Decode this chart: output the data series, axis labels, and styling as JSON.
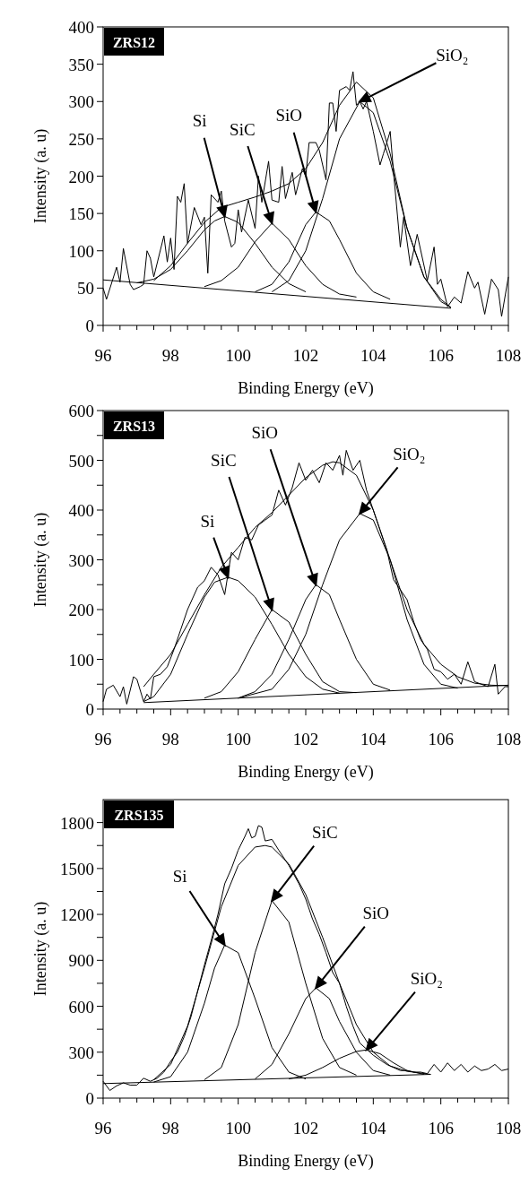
{
  "chart_data": [
    {
      "type": "line",
      "title": "ZRS12",
      "xlabel": "Binding Energy (eV)",
      "ylabel": "Intensity (a. u)",
      "xlim": [
        96,
        108
      ],
      "ylim": [
        0,
        400
      ],
      "xticks": [
        96,
        {
          "value": 96.5,
          "label": null
        },
        {
          "value": 97,
          "label": null
        },
        {
          "value": 97.5,
          "label": null
        },
        98,
        {
          "value": 98.5,
          "label": null
        },
        {
          "value": 99,
          "label": null
        },
        {
          "value": 99.5,
          "label": null
        },
        100,
        {
          "value": 100.5,
          "label": null
        },
        {
          "value": 101,
          "label": null
        },
        {
          "value": 101.5,
          "label": null
        },
        102,
        {
          "value": 102.5,
          "label": null
        },
        {
          "value": 103,
          "label": null
        },
        {
          "value": 103.5,
          "label": null
        },
        104,
        {
          "value": 104.5,
          "label": null
        },
        {
          "value": 105,
          "label": null
        },
        {
          "value": 105.5,
          "label": null
        },
        106,
        {
          "value": 106.5,
          "label": null
        },
        {
          "value": 107,
          "label": null
        },
        {
          "value": 107.5,
          "label": null
        },
        108
      ],
      "yticks": [
        0,
        50,
        100,
        150,
        200,
        250,
        300,
        350,
        400
      ],
      "series": [
        {
          "color": "#000000",
          "x": [
            96.0,
            96.1,
            96.4,
            96.5,
            96.6,
            96.8,
            96.9,
            97.1,
            97.2,
            97.3,
            97.4,
            97.5,
            97.8,
            97.9,
            98.0,
            98.1,
            98.2,
            98.3,
            98.4,
            98.5,
            98.7,
            98.9,
            99.0,
            99.1,
            99.2,
            99.4,
            99.5,
            99.6,
            99.8,
            99.9,
            100.0,
            100.1,
            100.3,
            100.5,
            100.6,
            100.7,
            100.9,
            101.0,
            101.2,
            101.3,
            101.4,
            101.6,
            101.7,
            101.9,
            102.0,
            102.1,
            102.3,
            102.4,
            102.6,
            102.7,
            102.8,
            102.9,
            103.0,
            103.2,
            103.3,
            103.4,
            103.5,
            103.6,
            103.7,
            103.8,
            104.0,
            104.2,
            104.3,
            104.5,
            104.6,
            104.8,
            104.9,
            105.1,
            105.3,
            105.6,
            105.8,
            105.9,
            106.0,
            106.2,
            106.4,
            106.6,
            106.8,
            107.0,
            107.1,
            107.3,
            107.5,
            107.7,
            107.8,
            108.0
          ],
          "values": [
            50,
            35,
            78,
            58,
            103,
            55,
            48,
            52,
            55,
            100,
            90,
            65,
            120,
            85,
            117,
            75,
            173,
            165,
            190,
            110,
            158,
            135,
            145,
            70,
            175,
            165,
            180,
            140,
            105,
            110,
            155,
            125,
            168,
            130,
            200,
            165,
            220,
            168,
            165,
            213,
            170,
            205,
            175,
            210,
            200,
            245,
            245,
            235,
            195,
            298,
            298,
            260,
            315,
            320,
            315,
            340,
            295,
            300,
            290,
            300,
            260,
            215,
            230,
            260,
            205,
            105,
            145,
            80,
            122,
            60,
            105,
            55,
            62,
            25,
            38,
            30,
            72,
            50,
            58,
            15,
            62,
            48,
            12,
            65
          ]
        },
        {
          "color": "#000000",
          "x": [
            97.5,
            98.0,
            98.5,
            99.0,
            99.5,
            100.0,
            100.5,
            101.0,
            101.5,
            102.0,
            102.5,
            103.0,
            103.5,
            104.0,
            104.5,
            105.0,
            105.5,
            106.0,
            106.3
          ],
          "values": [
            60,
            80,
            110,
            138,
            158,
            165,
            172,
            180,
            190,
            210,
            245,
            295,
            326,
            305,
            230,
            130,
            65,
            35,
            24
          ]
        },
        {
          "color": "#000000",
          "x": [
            96,
            106.3
          ],
          "values": [
            61,
            23
          ]
        },
        {
          "color": "#000000",
          "x": [
            97.0,
            97.5,
            98.0,
            98.5,
            99.0,
            99.3,
            99.6,
            100.0,
            100.5,
            101.0,
            101.5,
            102.0
          ],
          "values": [
            57,
            62,
            75,
            100,
            128,
            140,
            146,
            138,
            110,
            78,
            56,
            45
          ]
        },
        {
          "color": "#000000",
          "x": [
            99.0,
            99.5,
            100.0,
            100.5,
            101.0,
            101.5,
            102.0,
            102.5,
            103.0,
            103.5
          ],
          "values": [
            52,
            60,
            78,
            112,
            137,
            115,
            80,
            55,
            42,
            38
          ]
        },
        {
          "color": "#000000",
          "x": [
            100.5,
            101.0,
            101.5,
            102.0,
            102.3,
            102.7,
            103.0,
            103.5,
            104.0,
            104.5
          ],
          "values": [
            45,
            55,
            85,
            135,
            152,
            140,
            115,
            70,
            45,
            35
          ]
        },
        {
          "color": "#000000",
          "x": [
            101.0,
            101.5,
            102.0,
            102.5,
            103.0,
            103.6,
            104.0,
            104.5,
            105.0,
            105.5,
            106.0,
            106.3
          ],
          "values": [
            45,
            60,
            100,
            170,
            250,
            300,
            285,
            220,
            130,
            65,
            32,
            24
          ]
        }
      ],
      "annotations": [
        "Si",
        "SiC",
        "SiO",
        "SiO₂"
      ]
    },
    {
      "type": "line",
      "title": "ZRS13",
      "xlabel": "Binding Energy (eV)",
      "ylabel": "Intensity (a. u)",
      "xlim": [
        96,
        108
      ],
      "ylim": [
        0,
        600
      ],
      "xticks": [
        96,
        {
          "value": 96.5,
          "label": null
        },
        {
          "value": 97,
          "label": null
        },
        {
          "value": 97.5,
          "label": null
        },
        98,
        {
          "value": 98.5,
          "label": null
        },
        {
          "value": 99,
          "label": null
        },
        {
          "value": 99.5,
          "label": null
        },
        100,
        {
          "value": 100.5,
          "label": null
        },
        {
          "value": 101,
          "label": null
        },
        {
          "value": 101.5,
          "label": null
        },
        102,
        {
          "value": 102.5,
          "label": null
        },
        {
          "value": 103,
          "label": null
        },
        {
          "value": 103.5,
          "label": null
        },
        104,
        {
          "value": 104.5,
          "label": null
        },
        {
          "value": 105,
          "label": null
        },
        {
          "value": 105.5,
          "label": null
        },
        106,
        {
          "value": 106.5,
          "label": null
        },
        {
          "value": 107,
          "label": null
        },
        {
          "value": 107.5,
          "label": null
        },
        108
      ],
      "yticks": [
        0,
        {
          "value": 50,
          "label": null
        },
        100,
        {
          "value": 150,
          "label": null
        },
        200,
        {
          "value": 250,
          "label": null
        },
        300,
        {
          "value": 350,
          "label": null
        },
        400,
        {
          "value": 450,
          "label": null
        },
        500,
        {
          "value": 550,
          "label": null
        },
        600
      ],
      "series": [
        {
          "color": "#000000",
          "x": [
            96.0,
            96.1,
            96.3,
            96.5,
            96.6,
            96.7,
            96.9,
            97.0,
            97.2,
            97.3,
            97.4,
            97.5,
            97.7,
            97.9,
            98.1,
            98.3,
            98.5,
            98.8,
            99.0,
            99.2,
            99.4,
            99.6,
            99.8,
            100.0,
            100.2,
            100.4,
            100.6,
            100.8,
            101.0,
            101.2,
            101.4,
            101.6,
            101.8,
            102.0,
            102.2,
            102.4,
            102.6,
            102.8,
            103.0,
            103.1,
            103.2,
            103.4,
            103.6,
            103.8,
            104.0,
            104.2,
            104.4,
            104.6,
            104.8,
            105.0,
            105.2,
            105.4,
            105.6,
            105.8,
            106.0,
            106.2,
            106.4,
            106.6,
            106.8,
            107.0,
            107.2,
            107.4,
            107.6,
            107.7,
            107.9,
            108.0
          ],
          "values": [
            15,
            40,
            48,
            25,
            45,
            10,
            65,
            60,
            15,
            30,
            20,
            65,
            70,
            85,
            120,
            160,
            200,
            245,
            258,
            285,
            270,
            230,
            315,
            300,
            345,
            340,
            370,
            380,
            390,
            440,
            410,
            445,
            495,
            460,
            480,
            455,
            495,
            480,
            510,
            470,
            520,
            480,
            500,
            440,
            400,
            360,
            320,
            260,
            240,
            220,
            175,
            140,
            120,
            80,
            75,
            60,
            70,
            50,
            95,
            55,
            50,
            45,
            90,
            30,
            45,
            45
          ]
        },
        {
          "color": "#000000",
          "x": [
            97.2,
            97.5,
            98.0,
            98.5,
            99.0,
            99.5,
            100.0,
            100.5,
            101.0,
            101.5,
            102.0,
            102.5,
            102.8,
            103.0,
            103.5,
            104.0,
            104.5,
            105.0,
            105.5,
            106.0,
            106.5,
            107.0,
            107.5,
            108.0
          ],
          "values": [
            45,
            70,
            110,
            170,
            230,
            285,
            325,
            365,
            395,
            430,
            465,
            490,
            497,
            495,
            470,
            400,
            300,
            200,
            130,
            90,
            65,
            52,
            48,
            47
          ]
        },
        {
          "color": "#000000",
          "x": [
            97.2,
            108
          ],
          "values": [
            13,
            48
          ]
        },
        {
          "color": "#000000",
          "x": [
            97.2,
            97.5,
            98.0,
            98.5,
            99.0,
            99.3,
            99.7,
            100.0,
            100.5,
            101.0,
            101.5,
            102.0,
            102.5,
            103.0
          ],
          "values": [
            15,
            25,
            70,
            150,
            225,
            255,
            265,
            258,
            225,
            170,
            110,
            65,
            40,
            32
          ]
        },
        {
          "color": "#000000",
          "x": [
            99.0,
            99.5,
            100.0,
            100.5,
            101.0,
            101.5,
            102.0,
            102.5,
            103.0,
            103.5
          ],
          "values": [
            22,
            35,
            75,
            140,
            200,
            175,
            110,
            55,
            35,
            33
          ]
        },
        {
          "color": "#000000",
          "x": [
            100.0,
            100.5,
            101.0,
            101.5,
            102.0,
            102.3,
            102.7,
            103.0,
            103.5,
            104.0,
            104.5
          ],
          "values": [
            22,
            35,
            70,
            140,
            220,
            250,
            230,
            180,
            100,
            50,
            38
          ]
        },
        {
          "color": "#000000",
          "x": [
            100.0,
            101.0,
            101.5,
            102.0,
            102.5,
            103.0,
            103.6,
            104.0,
            104.5,
            105.0,
            105.5,
            106.0,
            106.5
          ],
          "values": [
            22,
            40,
            80,
            150,
            250,
            340,
            393,
            380,
            300,
            180,
            90,
            50,
            42
          ]
        }
      ],
      "annotations": [
        "Si",
        "SiC",
        "SiO",
        "SiO₂"
      ]
    },
    {
      "type": "line",
      "title": "ZRS135",
      "xlabel": "Binding Energy (eV)",
      "ylabel": "Intensity (a. u)",
      "xlim": [
        96,
        108
      ],
      "ylim": [
        0,
        1950
      ],
      "xticks": [
        96,
        {
          "value": 96.5,
          "label": null
        },
        {
          "value": 97,
          "label": null
        },
        {
          "value": 97.5,
          "label": null
        },
        98,
        {
          "value": 98.5,
          "label": null
        },
        {
          "value": 99,
          "label": null
        },
        {
          "value": 99.5,
          "label": null
        },
        100,
        {
          "value": 100.5,
          "label": null
        },
        {
          "value": 101,
          "label": null
        },
        {
          "value": 101.5,
          "label": null
        },
        102,
        {
          "value": 102.5,
          "label": null
        },
        {
          "value": 103,
          "label": null
        },
        {
          "value": 103.5,
          "label": null
        },
        104,
        {
          "value": 104.5,
          "label": null
        },
        {
          "value": 105,
          "label": null
        },
        {
          "value": 105.5,
          "label": null
        },
        106,
        {
          "value": 106.5,
          "label": null
        },
        {
          "value": 107,
          "label": null
        },
        {
          "value": 107.5,
          "label": null
        },
        108
      ],
      "yticks": [
        0,
        {
          "value": 150,
          "label": null
        },
        300,
        {
          "value": 450,
          "label": null
        },
        600,
        {
          "value": 750,
          "label": null
        },
        900,
        {
          "value": 1050,
          "label": null
        },
        1200,
        {
          "value": 1350,
          "label": null
        },
        1500,
        {
          "value": 1650,
          "label": null
        },
        1800
      ],
      "series": [
        {
          "color": "#000000",
          "x": [
            96.0,
            96.2,
            96.4,
            96.6,
            96.8,
            97.0,
            97.2,
            97.4,
            97.6,
            97.8,
            98.0,
            98.2,
            98.4,
            98.6,
            98.8,
            99.0,
            99.2,
            99.4,
            99.6,
            99.8,
            100.0,
            100.2,
            100.3,
            100.4,
            100.5,
            100.6,
            100.7,
            100.8,
            101.0,
            101.2,
            101.5,
            101.8,
            102.0,
            102.2,
            102.4,
            102.6,
            102.8,
            103.0,
            103.2,
            103.4,
            103.6,
            103.8,
            104.0,
            104.2,
            104.4,
            104.6,
            104.8,
            105.0,
            105.2,
            105.4,
            105.6,
            105.8,
            106.0,
            106.2,
            106.4,
            106.6,
            106.8,
            107.0,
            107.2,
            107.4,
            107.6,
            107.8,
            108.0
          ],
          "values": [
            110,
            50,
            80,
            100,
            85,
            85,
            130,
            110,
            130,
            170,
            240,
            300,
            400,
            530,
            700,
            870,
            1030,
            1200,
            1400,
            1500,
            1620,
            1710,
            1760,
            1700,
            1710,
            1780,
            1770,
            1680,
            1690,
            1620,
            1520,
            1400,
            1300,
            1170,
            1070,
            950,
            820,
            750,
            600,
            470,
            360,
            320,
            280,
            250,
            220,
            200,
            180,
            180,
            170,
            170,
            160,
            220,
            170,
            230,
            180,
            220,
            170,
            210,
            180,
            190,
            220,
            180,
            190
          ]
        },
        {
          "color": "#000000",
          "x": [
            97.5,
            98.0,
            98.5,
            99.0,
            99.5,
            100.0,
            100.5,
            100.8,
            101.0,
            101.5,
            102.0,
            102.5,
            103.0,
            103.5,
            104.0,
            104.5,
            105.0,
            105.7
          ],
          "values": [
            120,
            220,
            470,
            850,
            1250,
            1520,
            1640,
            1650,
            1640,
            1530,
            1330,
            1050,
            750,
            480,
            300,
            210,
            175,
            155
          ]
        },
        {
          "color": "#000000",
          "x": [
            96,
            105.7
          ],
          "values": [
            95,
            155
          ]
        },
        {
          "color": "#000000",
          "x": [
            97.5,
            98.0,
            98.5,
            99.0,
            99.3,
            99.6,
            100.0,
            100.5,
            101.0,
            101.5,
            102.0
          ],
          "values": [
            105,
            140,
            300,
            620,
            850,
            1000,
            950,
            650,
            330,
            170,
            125
          ]
        },
        {
          "color": "#000000",
          "x": [
            99.0,
            99.5,
            100.0,
            100.5,
            101.0,
            101.5,
            102.0,
            102.5,
            103.0,
            103.5
          ],
          "values": [
            120,
            200,
            480,
            950,
            1290,
            1150,
            750,
            390,
            200,
            150
          ]
        },
        {
          "color": "#000000",
          "x": [
            100.5,
            101.0,
            101.5,
            102.0,
            102.3,
            102.7,
            103.0,
            103.5,
            104.0,
            104.5
          ],
          "values": [
            125,
            220,
            420,
            650,
            720,
            650,
            500,
            300,
            180,
            150
          ]
        },
        {
          "color": "#000000",
          "x": [
            101.5,
            102.0,
            102.5,
            103.0,
            103.5,
            103.8,
            104.2,
            104.6,
            105.0,
            105.5
          ],
          "values": [
            125,
            150,
            200,
            260,
            305,
            315,
            290,
            230,
            180,
            155
          ]
        }
      ],
      "annotations": [
        "Si",
        "SiC",
        "SiO",
        "SiO₂"
      ]
    }
  ]
}
